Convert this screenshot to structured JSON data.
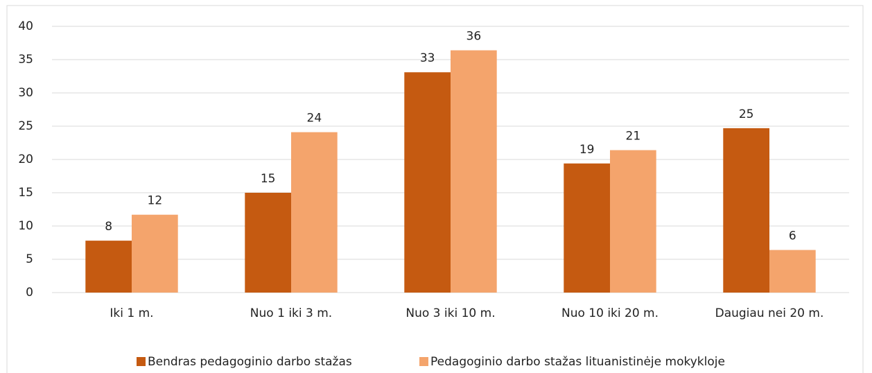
{
  "chart_data": {
    "type": "bar",
    "categories": [
      "Iki 1 m.",
      "Nuo 1 iki 3 m.",
      "Nuo 3 iki 10 m.",
      "Nuo 10 iki 20 m.",
      "Daugiau nei 20 m."
    ],
    "series": [
      {
        "name": "Bendras pedagoginio darbo stažas",
        "color": "#c55a11",
        "values": [
          7.8,
          15.0,
          33.1,
          19.4,
          24.7
        ],
        "value_labels": [
          "8",
          "15",
          "33",
          "19",
          "25"
        ]
      },
      {
        "name": "Pedagoginio darbo stažas lituanistinėje mokykloje",
        "color": "#f4a46c",
        "values": [
          11.7,
          24.1,
          36.4,
          21.4,
          6.4
        ],
        "value_labels": [
          "12",
          "24",
          "36",
          "21",
          "6"
        ]
      }
    ],
    "ylim": [
      0,
      40
    ],
    "yticks": [
      0,
      5,
      10,
      15,
      20,
      25,
      30,
      35,
      40
    ],
    "grid": true,
    "legend": "bottom"
  }
}
